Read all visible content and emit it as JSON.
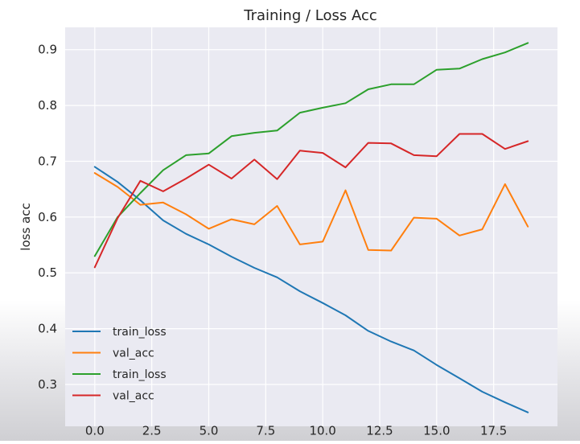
{
  "chart_data": {
    "type": "line",
    "title": "Training / Loss Acc",
    "xlabel": "",
    "ylabel": "loss acc",
    "xlim": [
      -1.3,
      20.3
    ],
    "ylim": [
      0.225,
      0.94
    ],
    "x_ticks": [
      0.0,
      2.5,
      5.0,
      7.5,
      10.0,
      12.5,
      15.0,
      17.5
    ],
    "x_tick_labels": [
      "0.0",
      "2.5",
      "5.0",
      "7.5",
      "10.0",
      "12.5",
      "15.0",
      "17.5"
    ],
    "y_ticks": [
      0.3,
      0.4,
      0.5,
      0.6,
      0.7,
      0.8,
      0.9
    ],
    "y_tick_labels": [
      "0.3",
      "0.4",
      "0.5",
      "0.6",
      "0.7",
      "0.8",
      "0.9"
    ],
    "grid": true,
    "legend_position": "lower-left",
    "x": [
      0,
      1,
      2,
      3,
      4,
      5,
      6,
      7,
      8,
      9,
      10,
      11,
      12,
      13,
      14,
      15,
      16,
      17,
      18,
      19
    ],
    "series": [
      {
        "name": "train_loss",
        "color": "#1f77b4",
        "values": [
          0.69,
          0.663,
          0.63,
          0.594,
          0.57,
          0.551,
          0.529,
          0.509,
          0.492,
          0.467,
          0.446,
          0.424,
          0.396,
          0.377,
          0.361,
          0.335,
          0.311,
          0.287,
          0.268,
          0.25
        ]
      },
      {
        "name": "val_acc",
        "color": "#ff7f0e",
        "values": [
          0.679,
          0.654,
          0.622,
          0.626,
          0.605,
          0.579,
          0.596,
          0.587,
          0.62,
          0.551,
          0.556,
          0.648,
          0.541,
          0.54,
          0.599,
          0.597,
          0.567,
          0.578,
          0.659,
          0.583
        ]
      },
      {
        "name": "train_loss",
        "color": "#2ca02c",
        "values": [
          0.53,
          0.6,
          0.643,
          0.684,
          0.711,
          0.714,
          0.745,
          0.751,
          0.755,
          0.787,
          0.796,
          0.804,
          0.829,
          0.838,
          0.838,
          0.864,
          0.866,
          0.883,
          0.895,
          0.912
        ]
      },
      {
        "name": "val_acc",
        "color": "#d62728",
        "values": [
          0.51,
          0.598,
          0.665,
          0.646,
          0.669,
          0.694,
          0.669,
          0.703,
          0.668,
          0.719,
          0.715,
          0.689,
          0.733,
          0.732,
          0.711,
          0.709,
          0.749,
          0.749,
          0.722,
          0.736
        ]
      }
    ]
  }
}
